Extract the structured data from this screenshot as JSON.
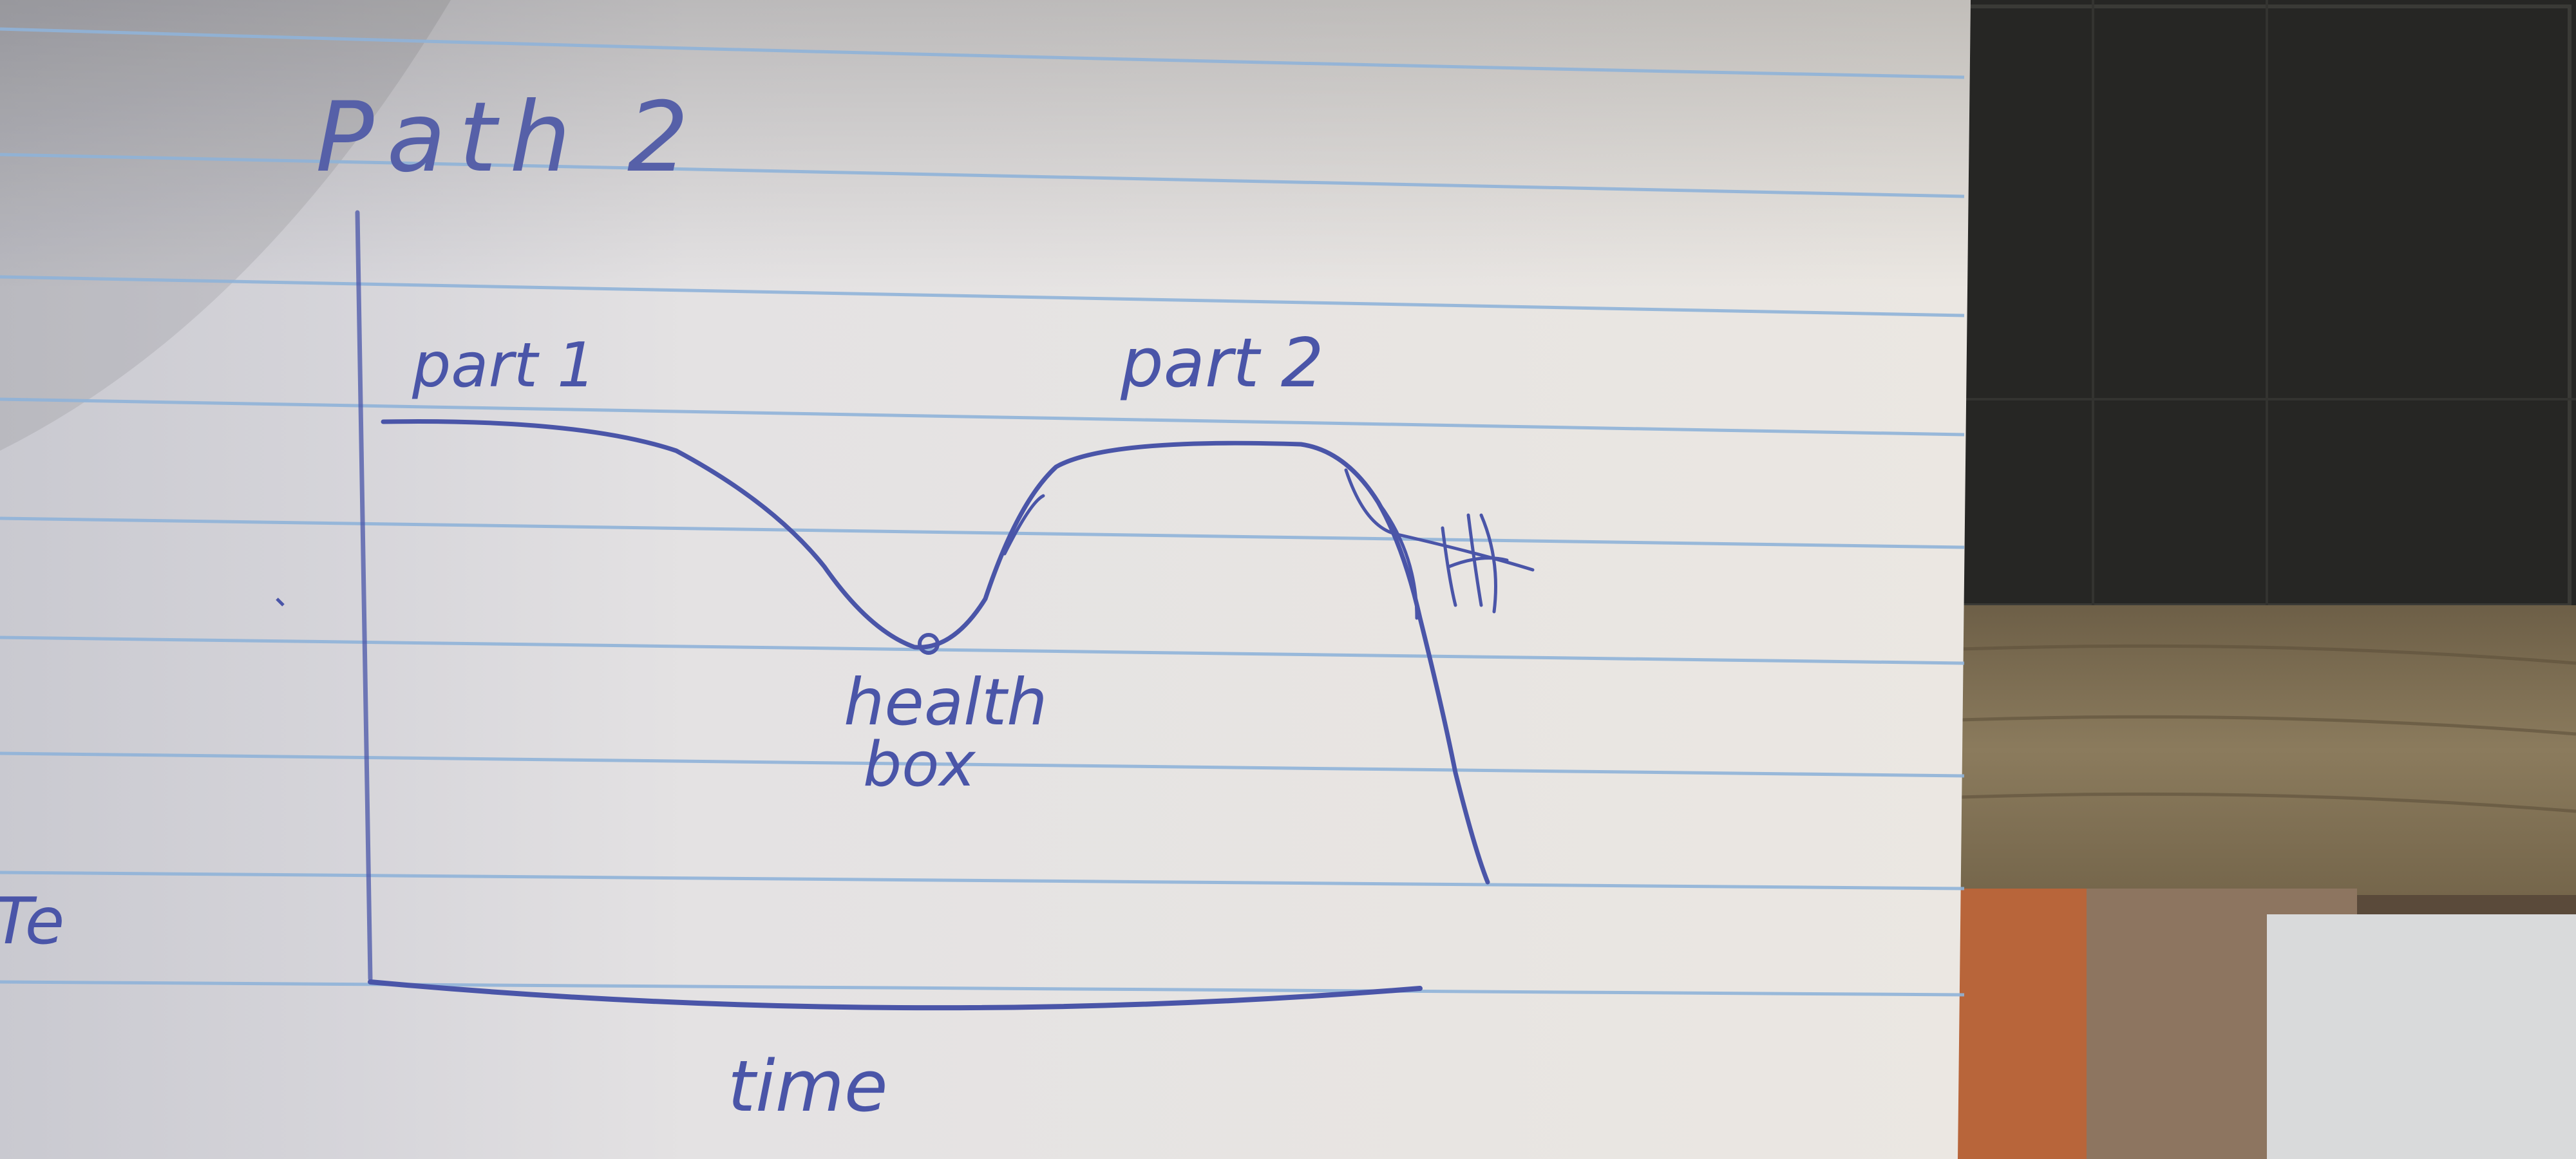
{
  "sketch": {
    "title": "Path 2",
    "labels": {
      "part1": "part 1",
      "part2": "part 2",
      "health_box_line1": "health",
      "health_box_line2": "box",
      "x_axis": "time",
      "margin_fragment": "Te"
    }
  },
  "colors": {
    "ink": "#4a55a8",
    "paper": "#e7e6e8",
    "rule_line": "#8fb3d8",
    "board": "#2a2a28",
    "wood": "#8a7a5e"
  }
}
